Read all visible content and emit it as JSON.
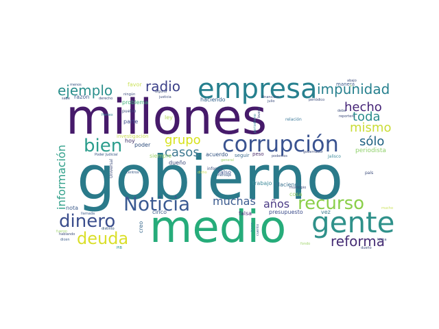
{
  "cloud": {
    "words": [
      {
        "text": "gobierno",
        "color": "#2a7a8a"
      },
      {
        "text": "millones",
        "color": "#461a6a"
      },
      {
        "text": "medio",
        "color": "#26ac7a"
      },
      {
        "text": "empresa",
        "color": "#27808e"
      },
      {
        "text": "corrupción",
        "color": "#3a5390"
      },
      {
        "text": "gente",
        "color": "#2f918a"
      },
      {
        "text": "Noticia",
        "color": "#3b5a92"
      },
      {
        "text": "recurso",
        "color": "#8bcf4a"
      },
      {
        "text": "dinero",
        "color": "#3a4d8c"
      },
      {
        "text": "deuda",
        "color": "#dadf2a"
      },
      {
        "text": "bien",
        "color": "#2b9d8c"
      },
      {
        "text": "impunidad",
        "color": "#26808e"
      },
      {
        "text": "reforma",
        "color": "#452c74"
      },
      {
        "text": "ejemplo",
        "color": "#2a8f8c"
      },
      {
        "text": "radio",
        "color": "#3a3f87"
      },
      {
        "text": "mismo",
        "color": "#c9dc34"
      },
      {
        "text": "hecho",
        "color": "#452377"
      },
      {
        "text": "toda",
        "color": "#2a8c8c"
      },
      {
        "text": "sólo",
        "color": "#1d5f80"
      },
      {
        "text": "grupo",
        "color": "#d7e21c"
      },
      {
        "text": "casos",
        "color": "#3f7a92"
      },
      {
        "text": "muchas",
        "color": "#3a5a8e"
      },
      {
        "text": "años",
        "color": "#4a3a84"
      },
      {
        "text": "información",
        "color": "#2f9f89"
      },
      {
        "text": "parte",
        "color": "#3a4a8a"
      },
      {
        "text": "poder",
        "color": "#2a4a7a"
      },
      {
        "text": "periodista",
        "color": "#8fd06a"
      },
      {
        "text": "Hacienda",
        "color": "#3b7290"
      },
      {
        "text": "trabajo",
        "color": "#3d8a9a"
      },
      {
        "text": "falso",
        "color": "#3a4f8d"
      },
      {
        "text": "falsa",
        "color": "#4a2d7a"
      },
      {
        "text": "presupuesto",
        "color": "#3a4a8a"
      },
      {
        "text": "cosa",
        "color": "#9fd46a"
      },
      {
        "text": "vez",
        "color": "#3b7a8e"
      },
      {
        "text": "haciendo",
        "color": "#2f5f8a"
      },
      {
        "text": "problema",
        "color": "#44b07c"
      },
      {
        "text": "favor",
        "color": "#cbe25a"
      },
      {
        "text": "razón",
        "color": "#3b5a8a"
      },
      {
        "text": "hoy",
        "color": "#3a2b62"
      },
      {
        "text": "ley",
        "color": "#b7d85a"
      },
      {
        "text": "creo",
        "color": "#3a6a8e"
      },
      {
        "text": "cinco",
        "color": "#3a5a8a"
      },
      {
        "text": "nota",
        "color": "#3b5a8a"
      },
      {
        "text": "dueño",
        "color": "#3a4a7a"
      },
      {
        "text": "siempre",
        "color": "#9fd46a"
      },
      {
        "text": "acuerdo",
        "color": "#2f4f7f"
      },
      {
        "text": "seguir",
        "color": "#3a6a8e"
      },
      {
        "text": "peso",
        "color": "#4a2d6a"
      },
      {
        "text": "manera",
        "color": "#3a5a8a"
      },
      {
        "text": "investigación",
        "color": "#c9dc54"
      },
      {
        "text": "Poder Judicial",
        "color": "#2f4f7f"
      },
      {
        "text": "informe",
        "color": "#3a4a7a"
      },
      {
        "text": "mensaje",
        "color": "#3a5a8a"
      },
      {
        "text": "dicho",
        "color": "#c9dc54"
      },
      {
        "text": "general",
        "color": "#9fd46a"
      },
      {
        "text": "Universal",
        "color": "#3a4a7a"
      },
      {
        "text": "centros",
        "color": "#2f4f7f"
      },
      {
        "text": "llamada",
        "color": "#3b5a8a"
      },
      {
        "text": "distinto",
        "color": "#2a4a6a"
      },
      {
        "text": "fueron",
        "color": "#9fd46a"
      },
      {
        "text": "fondo",
        "color": "#9fd46a"
      },
      {
        "text": "dicen",
        "color": "#3a5a8a"
      },
      {
        "text": "PIB",
        "color": "#2a8c8c"
      },
      {
        "text": "tierra",
        "color": "#3b8a9a"
      },
      {
        "text": "cuento",
        "color": "#3a5a8a"
      },
      {
        "text": "municipio",
        "color": "#3a4a7a"
      },
      {
        "text": "país",
        "color": "#3a4a7a"
      },
      {
        "text": "mucho",
        "color": "#cbe25a"
      },
      {
        "text": "dueño",
        "color": "#3a4a7a"
      },
      {
        "text": "Jalisco",
        "color": "#3b8a9a"
      },
      {
        "text": "gobernador",
        "color": "#3a4a7a"
      },
      {
        "text": "podemos",
        "color": "#3a4a7a"
      },
      {
        "text": "relación",
        "color": "#3b7a9a"
      },
      {
        "text": "financiero",
        "color": "#3a4a7a"
      },
      {
        "text": "julio",
        "color": "#3a4a7a"
      },
      {
        "text": "periódico",
        "color": "#3a4a7a"
      },
      {
        "text": "abajo",
        "color": "#3a4a7a"
      },
      {
        "text": "debe",
        "color": "#3a4a7a"
      },
      {
        "text": "reportero",
        "color": "#3a4a7a"
      },
      {
        "text": "buena",
        "color": "#3a4a7a"
      },
      {
        "text": "periodismo",
        "color": "#3b8a9a"
      },
      {
        "text": "ir",
        "color": "#9fd46a"
      },
      {
        "text": "Pemex",
        "color": "#3b8a9a"
      },
      {
        "text": "menos",
        "color": "#2f4f7f"
      },
      {
        "text": "ningún",
        "color": "#3a4a7a"
      },
      {
        "text": "alguna",
        "color": "#3a4a7a"
      },
      {
        "text": "justicia",
        "color": "#3a4a7a"
      },
      {
        "text": "derecho",
        "color": "#3a4a7a"
      },
      {
        "text": "sabe",
        "color": "#3a4a7a"
      },
      {
        "text": "pueblo",
        "color": "#3a4a7a"
      },
      {
        "text": "hablando",
        "color": "#3a4a7a"
      },
      {
        "text": "lucha",
        "color": "#3a4a7a"
      }
    ]
  }
}
